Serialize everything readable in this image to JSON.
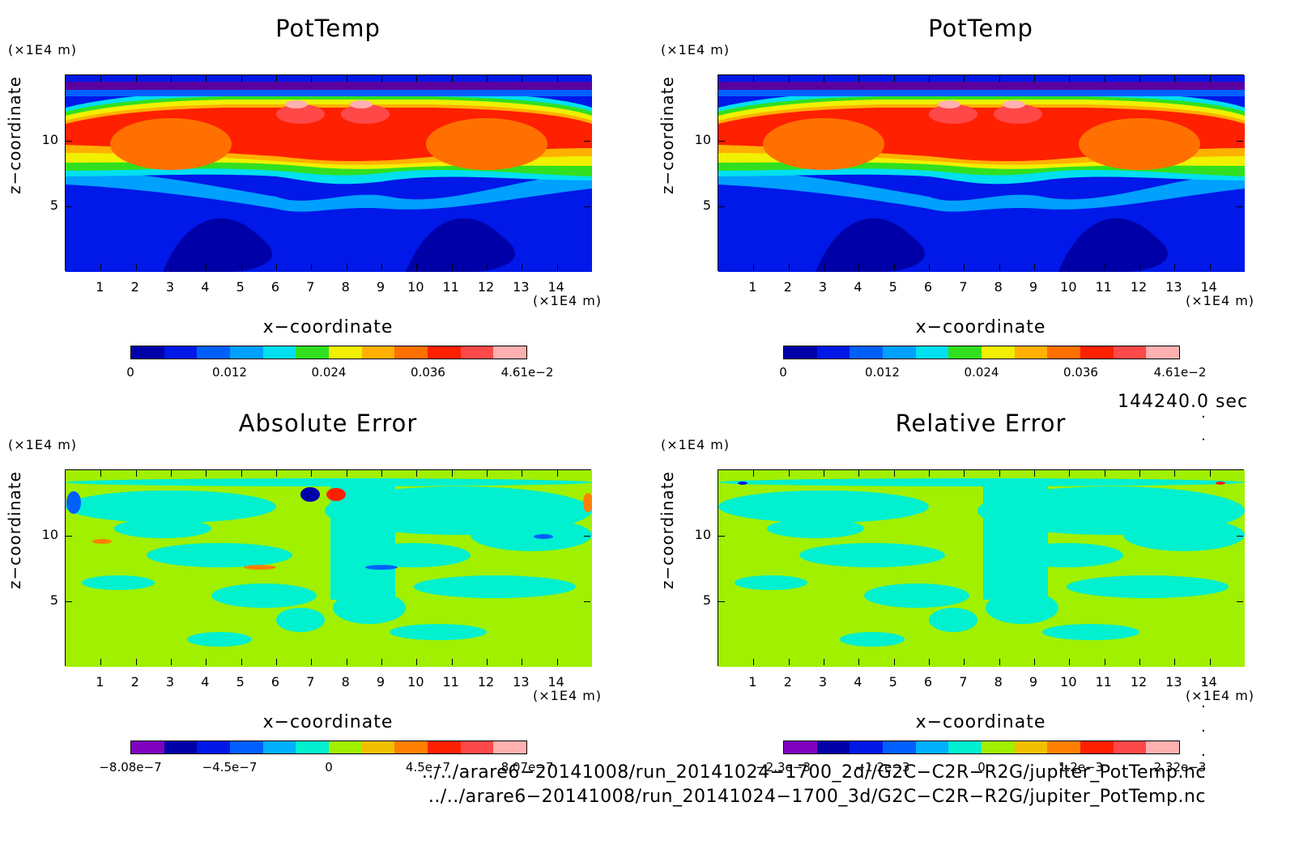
{
  "panels": [
    {
      "title": "PotTemp",
      "x_unit": "(×1E4 m)",
      "y_unit": "(×1E4 m)",
      "xlabel": "x−coordinate",
      "ylabel": "z−coordinate",
      "colorbar_labels": [
        "0",
        "0.012",
        "0.024",
        "0.036",
        "4.61e−2"
      ],
      "colorbar_colors": [
        "#0000a8",
        "#0018e8",
        "#0060ff",
        "#00a0ff",
        "#00e0f0",
        "#30e020",
        "#f0f000",
        "#ffb000",
        "#ff7000",
        "#ff2000",
        "#ff4848",
        "#ffb0b0"
      ]
    },
    {
      "title": "PotTemp",
      "x_unit": "(×1E4 m)",
      "y_unit": "(×1E4 m)",
      "xlabel": "x−coordinate",
      "ylabel": "z−coordinate",
      "colorbar_labels": [
        "0",
        "0.012",
        "0.024",
        "0.036",
        "4.61e−2"
      ],
      "colorbar_colors": [
        "#0000a8",
        "#0018e8",
        "#0060ff",
        "#00a0ff",
        "#00e0f0",
        "#30e020",
        "#f0f000",
        "#ffb000",
        "#ff7000",
        "#ff2000",
        "#ff4848",
        "#ffb0b0"
      ]
    },
    {
      "title": "Absolute Error",
      "x_unit": "(×1E4 m)",
      "y_unit": "(×1E4 m)",
      "xlabel": "x−coordinate",
      "ylabel": "z−coordinate",
      "colorbar_labels": [
        "−8.08e−7",
        "−4.5e−7",
        "0",
        "4.5e−7",
        "8.07e−7"
      ],
      "colorbar_colors": [
        "#8000c0",
        "#0000a8",
        "#0018e8",
        "#0060ff",
        "#00b0ff",
        "#00f0d0",
        "#a0f000",
        "#f0c000",
        "#ff8000",
        "#ff2000",
        "#ff4848",
        "#ffb0b0"
      ]
    },
    {
      "title": "Relative Error",
      "x_unit": "(×1E4 m)",
      "y_unit": "(×1E4 m)",
      "xlabel": "x−coordinate",
      "ylabel": "z−coordinate",
      "colorbar_labels": [
        "−2.3e−3",
        "−1.2e−3",
        "0",
        "1.2e−3",
        "2.32e−3"
      ],
      "colorbar_colors": [
        "#8000c0",
        "#0000a8",
        "#0018e8",
        "#0060ff",
        "#00b0ff",
        "#00f0d0",
        "#a0f000",
        "#f0c000",
        "#ff8000",
        "#ff2000",
        "#ff4848",
        "#ffb0b0"
      ]
    }
  ],
  "time_label": "144240.0 sec",
  "file_paths": [
    "../../arare6−20141008/run_20141024−1700_2d//G2C−C2R−R2G/jupiter_PotTemp.nc",
    "../../arare6−20141008/run_20141024−1700_3d/G2C−C2R−R2G/jupiter_PotTemp.nc"
  ],
  "chart_data": [
    {
      "type": "heatmap",
      "title": "PotTemp",
      "xlabel": "x−coordinate",
      "ylabel": "z−coordinate",
      "x_ticks": [
        1,
        2,
        3,
        4,
        5,
        6,
        7,
        8,
        9,
        10,
        11,
        12,
        13,
        14
      ],
      "y_ticks": [
        5,
        10
      ],
      "xlim": [
        0,
        15
      ],
      "ylim": [
        0,
        15
      ],
      "color_range": [
        0,
        0.0461
      ],
      "colorbar_ticks": [
        "0",
        "0.012",
        "0.024",
        "0.036",
        "4.61e−2"
      ]
    },
    {
      "type": "heatmap",
      "title": "PotTemp",
      "xlabel": "x−coordinate",
      "ylabel": "z−coordinate",
      "x_ticks": [
        1,
        2,
        3,
        4,
        5,
        6,
        7,
        8,
        9,
        10,
        11,
        12,
        13,
        14
      ],
      "y_ticks": [
        5,
        10
      ],
      "xlim": [
        0,
        15
      ],
      "ylim": [
        0,
        15
      ],
      "color_range": [
        0,
        0.0461
      ],
      "colorbar_ticks": [
        "0",
        "0.012",
        "0.024",
        "0.036",
        "4.61e−2"
      ]
    },
    {
      "type": "heatmap",
      "title": "Absolute Error",
      "xlabel": "x−coordinate",
      "ylabel": "z−coordinate",
      "x_ticks": [
        1,
        2,
        3,
        4,
        5,
        6,
        7,
        8,
        9,
        10,
        11,
        12,
        13,
        14
      ],
      "y_ticks": [
        5,
        10
      ],
      "xlim": [
        0,
        15
      ],
      "ylim": [
        0,
        15
      ],
      "color_range": [
        -8.08e-07,
        8.07e-07
      ],
      "colorbar_ticks": [
        "−8.08e−7",
        "−4.5e−7",
        "0",
        "4.5e−7",
        "8.07e−7"
      ]
    },
    {
      "type": "heatmap",
      "title": "Relative Error",
      "xlabel": "x−coordinate",
      "ylabel": "z−coordinate",
      "x_ticks": [
        1,
        2,
        3,
        4,
        5,
        6,
        7,
        8,
        9,
        10,
        11,
        12,
        13,
        14
      ],
      "y_ticks": [
        5,
        10
      ],
      "xlim": [
        0,
        15
      ],
      "ylim": [
        0,
        15
      ],
      "color_range": [
        -0.0023,
        0.00232
      ],
      "colorbar_ticks": [
        "−2.3e−3",
        "−1.2e−3",
        "0",
        "1.2e−3",
        "2.32e−3"
      ]
    }
  ]
}
